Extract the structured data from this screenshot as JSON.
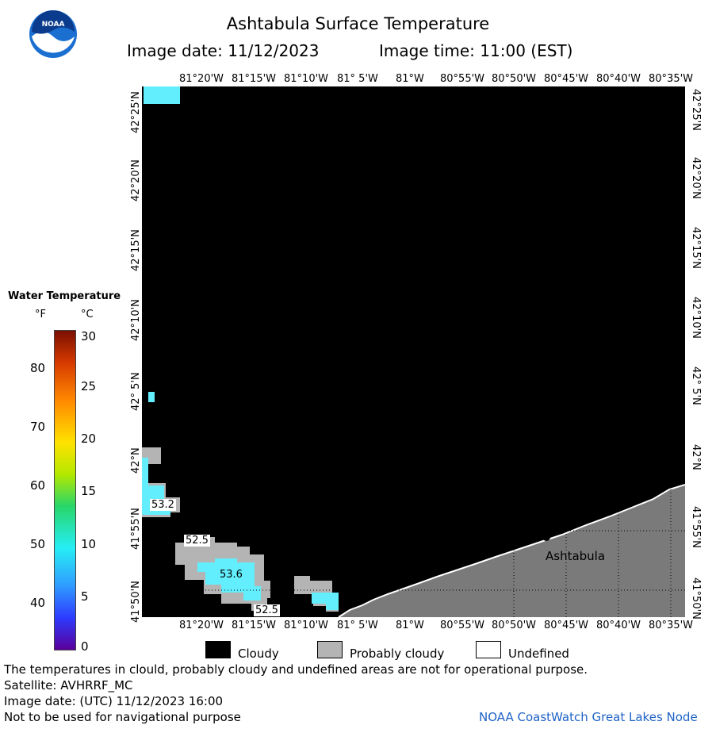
{
  "header": {
    "title": "Ashtabula Surface Temperature",
    "image_date": "Image date: 11/12/2023",
    "image_time": "Image time: 11:00 (EST)"
  },
  "logo": {
    "text": "NOAA"
  },
  "map": {
    "lon_labels": [
      "81°20'W",
      "81°15'W",
      "81°10'W",
      "81° 5'W",
      "81°W",
      "80°55'W",
      "80°50'W",
      "80°45'W",
      "80°40'W",
      "80°35'W"
    ],
    "lat_labels": [
      "42°25'N",
      "42°20'N",
      "42°15'N",
      "42°10'N",
      "42° 5'N",
      "42°N",
      "41°55'N",
      "41°50'N"
    ],
    "city": "Ashtabula",
    "contour_labels": [
      "53.2",
      "52.5",
      "53.6",
      "52.5"
    ]
  },
  "legend": {
    "title": "Water Temperature",
    "unit_f": "°F",
    "unit_c": "°C",
    "f_ticks": [
      "80",
      "70",
      "60",
      "50",
      "40"
    ],
    "c_ticks": [
      "30",
      "25",
      "20",
      "15",
      "10",
      "5",
      "0"
    ]
  },
  "key": {
    "cloudy": "Cloudy",
    "probably_cloudy": "Probably cloudy",
    "undefined": "Undefined",
    "colors": {
      "cloudy": "#000000",
      "probably_cloudy": "#b4b4b4",
      "undefined": "#ffffff",
      "land": "#7a7a7a",
      "water": "#62eefc"
    }
  },
  "footer": {
    "disclaimer": "The temperatures in clould, probably cloudy and undefined areas are not for operational purpose.",
    "satellite": "Satellite: AVHRRF_MC",
    "utc_date": "Image date: (UTC) 11/12/2023  16:00",
    "navigation": "Not to be used for navigational purpose",
    "credit": "NOAA CoastWatch Great Lakes Node"
  }
}
